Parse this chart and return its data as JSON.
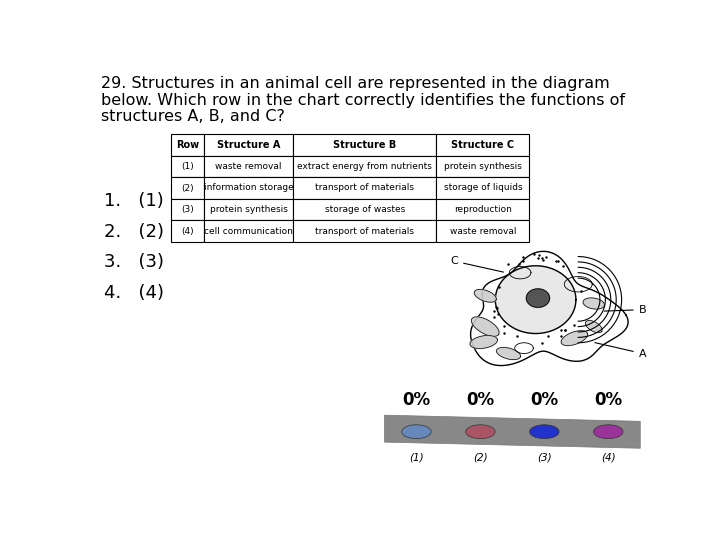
{
  "title_line1": "29. Structures in an animal cell are represented in the diagram",
  "title_line2": "below. Which row in the chart correctly identifies the functions of",
  "title_line3": "structures A, B, and C?",
  "title_fontsize": 11.5,
  "choices": [
    "1.   (1)",
    "2.   (2)",
    "3.   (3)",
    "4.   (4)"
  ],
  "table_headers": [
    "Row",
    "Structure A",
    "Structure B",
    "Structure C"
  ],
  "table_rows": [
    [
      "(1)",
      "waste removal",
      "extract energy from nutrients",
      "protein synthesis"
    ],
    [
      "(2)",
      "information storage",
      "transport of materials",
      "storage of liquids"
    ],
    [
      "(3)",
      "protein synthesis",
      "storage of wastes",
      "reproduction"
    ],
    [
      "(4)",
      "cell communication",
      "transport of materials",
      "waste removal"
    ]
  ],
  "bar_colors": [
    "#6688bb",
    "#aa5566",
    "#2233cc",
    "#993399"
  ],
  "bar_labels": [
    "(1)",
    "(2)",
    "(3)",
    "(4)"
  ],
  "bar_percentages": [
    "0%",
    "0%",
    "0%",
    "0%"
  ],
  "background_color": "#ffffff"
}
